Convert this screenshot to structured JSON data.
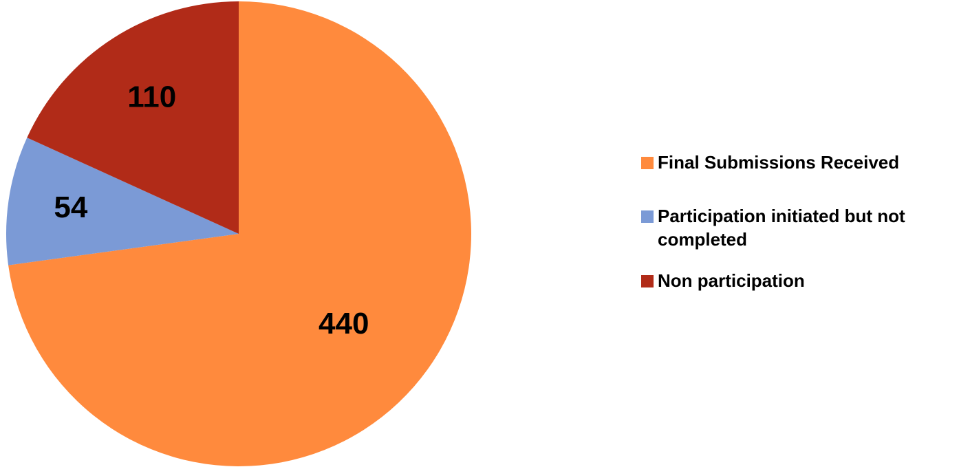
{
  "chart_data": {
    "type": "pie",
    "title": "",
    "categories": [
      "Final Submissions Received",
      "Participation initiated but not completed",
      "Non participation"
    ],
    "values": [
      440,
      54,
      110
    ],
    "data_labels": [
      "440",
      "54",
      "110"
    ],
    "colors": [
      "#ff8a3d",
      "#7b9ad6",
      "#b12b18"
    ],
    "start": "top",
    "direction": "clockwise",
    "legend": {
      "position": "right",
      "entries": [
        {
          "lines": [
            "Final Submissions Received"
          ]
        },
        {
          "lines": [
            "Participation initiated but not",
            "completed"
          ]
        },
        {
          "lines": [
            "Non participation"
          ]
        }
      ]
    }
  }
}
